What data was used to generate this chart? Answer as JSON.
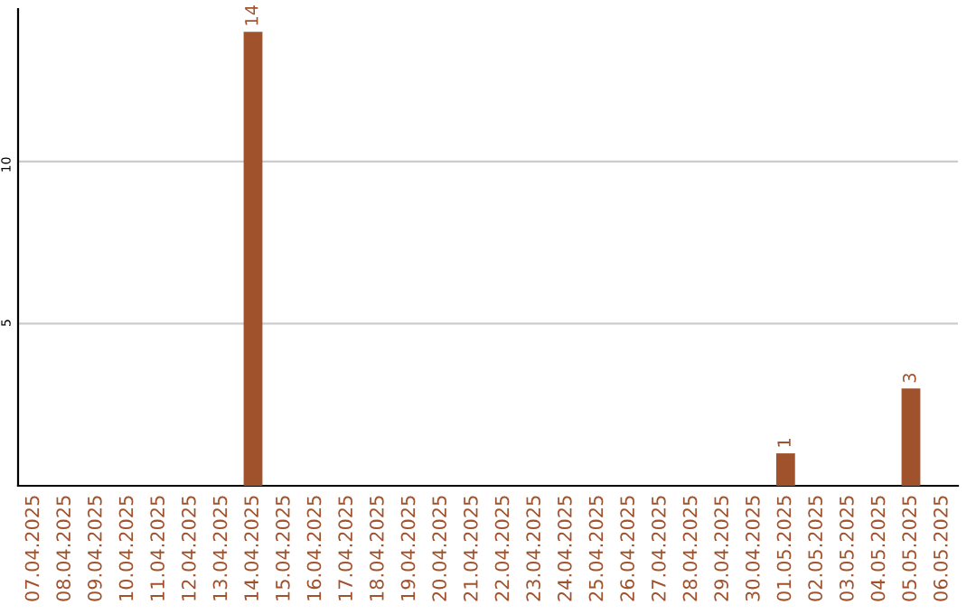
{
  "chart_data": {
    "type": "bar",
    "categories": [
      "07.04.2025",
      "08.04.2025",
      "09.04.2025",
      "10.04.2025",
      "11.04.2025",
      "12.04.2025",
      "13.04.2025",
      "14.04.2025",
      "15.04.2025",
      "16.04.2025",
      "17.04.2025",
      "18.04.2025",
      "19.04.2025",
      "20.04.2025",
      "21.04.2025",
      "22.04.2025",
      "23.04.2025",
      "24.04.2025",
      "25.04.2025",
      "26.04.2025",
      "27.04.2025",
      "28.04.2025",
      "29.04.2025",
      "30.04.2025",
      "01.05.2025",
      "02.05.2025",
      "03.05.2025",
      "04.05.2025",
      "05.05.2025",
      "06.05.2025"
    ],
    "values": [
      0,
      0,
      0,
      0,
      0,
      0,
      0,
      14,
      0,
      0,
      0,
      0,
      0,
      0,
      0,
      0,
      0,
      0,
      0,
      0,
      0,
      0,
      0,
      0,
      1,
      0,
      0,
      0,
      3,
      0
    ],
    "value_labels": [
      null,
      null,
      null,
      null,
      null,
      null,
      null,
      "14",
      null,
      null,
      null,
      null,
      null,
      null,
      null,
      null,
      null,
      null,
      null,
      null,
      null,
      null,
      null,
      null,
      "1",
      null,
      null,
      null,
      "3",
      null
    ],
    "color": "#a0522d",
    "ylim": [
      0,
      14.7
    ],
    "yticks": [
      5,
      10
    ],
    "grid": "y",
    "legend": false
  }
}
